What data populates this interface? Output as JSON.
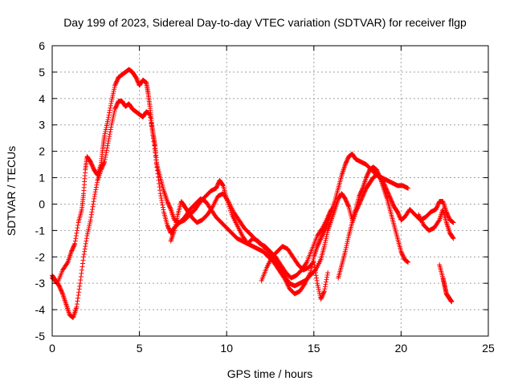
{
  "chart_data": {
    "type": "scatter",
    "title": "Day 199 of 2023, Sidereal Day-to-day VTEC variation (SDTVAR) for receiver flgp",
    "xlabel": "GPS time / hours",
    "ylabel": "SDTVAR / TECUs",
    "xlim": [
      0,
      25
    ],
    "ylim": [
      -5,
      6
    ],
    "xticks": [
      0,
      5,
      10,
      15,
      20,
      25
    ],
    "yticks": [
      -5,
      -4,
      -3,
      -2,
      -1,
      0,
      1,
      2,
      3,
      4,
      5,
      6
    ],
    "grid": true,
    "marker": "+",
    "series": [
      {
        "name": "SDTVAR",
        "color": "#ff0000",
        "segments": [
          [
            [
              0.0,
              -2.8
            ],
            [
              0.3,
              -3.0
            ],
            [
              0.6,
              -2.5
            ],
            [
              0.9,
              -2.2
            ],
            [
              1.1,
              -1.8
            ],
            [
              1.3,
              -1.5
            ],
            [
              1.5,
              -0.7
            ],
            [
              1.7,
              -0.2
            ],
            [
              1.8,
              0.4
            ],
            [
              1.9,
              1.3
            ],
            [
              2.0,
              1.8
            ],
            [
              2.2,
              1.6
            ],
            [
              2.4,
              1.3
            ],
            [
              2.6,
              1.1
            ],
            [
              2.8,
              1.5
            ],
            [
              2.9,
              2.1
            ],
            [
              3.0,
              2.6
            ],
            [
              3.2,
              3.2
            ],
            [
              3.4,
              3.9
            ],
            [
              3.6,
              4.5
            ],
            [
              3.8,
              4.8
            ],
            [
              4.0,
              4.9
            ],
            [
              4.2,
              5.0
            ],
            [
              4.4,
              5.1
            ],
            [
              4.6,
              5.0
            ],
            [
              4.8,
              4.8
            ],
            [
              5.0,
              4.5
            ],
            [
              5.2,
              4.7
            ],
            [
              5.4,
              4.6
            ],
            [
              5.5,
              4.2
            ],
            [
              5.6,
              3.7
            ],
            [
              5.7,
              3.1
            ],
            [
              5.8,
              2.6
            ],
            [
              5.9,
              2.2
            ],
            [
              6.0,
              1.5
            ],
            [
              6.2,
              1.0
            ],
            [
              6.4,
              0.5
            ],
            [
              6.6,
              0.1
            ],
            [
              6.8,
              -0.2
            ],
            [
              7.0,
              -0.6
            ],
            [
              7.3,
              -0.7
            ],
            [
              7.6,
              -0.6
            ],
            [
              7.9,
              -0.4
            ],
            [
              8.2,
              -0.2
            ],
            [
              8.5,
              0.1
            ],
            [
              8.8,
              0.3
            ],
            [
              9.1,
              0.5
            ],
            [
              9.4,
              0.6
            ],
            [
              9.6,
              0.9
            ],
            [
              9.8,
              0.7
            ],
            [
              10.0,
              0.2
            ],
            [
              10.3,
              -0.4
            ],
            [
              10.6,
              -0.8
            ],
            [
              10.9,
              -1.2
            ],
            [
              11.2,
              -1.5
            ],
            [
              11.5,
              -1.6
            ],
            [
              11.8,
              -1.7
            ],
            [
              12.1,
              -1.8
            ],
            [
              12.4,
              -2.0
            ],
            [
              12.7,
              -2.2
            ],
            [
              13.0,
              -2.5
            ],
            [
              13.3,
              -2.8
            ],
            [
              13.6,
              -3.2
            ],
            [
              13.9,
              -3.4
            ],
            [
              14.2,
              -3.3
            ],
            [
              14.5,
              -3.0
            ],
            [
              14.8,
              -2.6
            ],
            [
              15.0,
              -2.0
            ],
            [
              15.2,
              -1.6
            ],
            [
              15.4,
              -1.3
            ],
            [
              15.6,
              -1.0
            ],
            [
              15.8,
              -0.7
            ],
            [
              16.0,
              -0.3
            ],
            [
              16.2,
              0.1
            ],
            [
              16.4,
              0.6
            ],
            [
              16.6,
              1.1
            ],
            [
              16.8,
              1.5
            ],
            [
              17.0,
              1.8
            ],
            [
              17.2,
              1.9
            ],
            [
              17.4,
              1.7
            ],
            [
              17.7,
              1.6
            ],
            [
              18.0,
              1.5
            ],
            [
              18.3,
              1.3
            ],
            [
              18.6,
              1.1
            ],
            [
              18.9,
              1.0
            ],
            [
              19.2,
              0.9
            ],
            [
              19.5,
              0.8
            ],
            [
              19.8,
              0.7
            ],
            [
              20.1,
              0.7
            ],
            [
              20.4,
              0.6
            ]
          ],
          [
            [
              0.0,
              -2.7
            ],
            [
              0.2,
              -2.9
            ],
            [
              0.4,
              -3.1
            ],
            [
              0.6,
              -3.4
            ],
            [
              0.8,
              -3.8
            ],
            [
              1.0,
              -4.2
            ],
            [
              1.2,
              -4.3
            ],
            [
              1.4,
              -3.9
            ],
            [
              1.6,
              -3.0
            ],
            [
              1.8,
              -2.0
            ],
            [
              2.0,
              -1.2
            ],
            [
              2.2,
              -0.6
            ],
            [
              2.4,
              0.2
            ],
            [
              2.6,
              0.9
            ],
            [
              2.8,
              1.3
            ],
            [
              3.0,
              1.6
            ],
            [
              3.2,
              2.3
            ],
            [
              3.4,
              3.0
            ],
            [
              3.6,
              3.6
            ],
            [
              3.8,
              3.9
            ],
            [
              4.0,
              3.9
            ],
            [
              4.2,
              3.7
            ],
            [
              4.4,
              3.8
            ],
            [
              4.6,
              3.6
            ],
            [
              4.8,
              3.5
            ],
            [
              5.0,
              3.4
            ],
            [
              5.2,
              3.3
            ],
            [
              5.4,
              3.5
            ],
            [
              5.6,
              3.4
            ],
            [
              5.8,
              2.5
            ],
            [
              6.0,
              1.4
            ],
            [
              6.2,
              0.4
            ],
            [
              6.4,
              -0.3
            ],
            [
              6.6,
              -0.8
            ],
            [
              6.8,
              -1.1
            ],
            [
              7.0,
              -0.9
            ],
            [
              7.3,
              -0.7
            ],
            [
              7.6,
              -0.5
            ],
            [
              7.9,
              -0.2
            ],
            [
              8.2,
              0.0
            ],
            [
              8.5,
              0.2
            ],
            [
              8.8,
              0.1
            ],
            [
              9.1,
              -0.2
            ],
            [
              9.4,
              -0.5
            ],
            [
              9.7,
              -0.7
            ],
            [
              10.0,
              -0.9
            ],
            [
              10.3,
              -1.1
            ],
            [
              10.6,
              -1.3
            ],
            [
              10.9,
              -1.4
            ],
            [
              11.2,
              -1.5
            ],
            [
              11.5,
              -1.3
            ],
            [
              11.8,
              -1.4
            ],
            [
              12.1,
              -1.6
            ],
            [
              12.4,
              -1.8
            ],
            [
              12.7,
              -2.1
            ],
            [
              13.0,
              -2.4
            ],
            [
              13.3,
              -2.7
            ],
            [
              13.6,
              -3.0
            ],
            [
              13.9,
              -3.1
            ],
            [
              14.2,
              -3.0
            ],
            [
              14.5,
              -2.9
            ],
            [
              14.8,
              -2.7
            ],
            [
              15.1,
              -2.5
            ],
            [
              15.4,
              -2.1
            ],
            [
              15.6,
              -1.6
            ],
            [
              15.8,
              -1.0
            ],
            [
              16.0,
              -0.6
            ],
            [
              16.2,
              -0.2
            ],
            [
              16.4,
              0.2
            ],
            [
              16.6,
              0.4
            ],
            [
              16.8,
              0.2
            ],
            [
              17.0,
              -0.1
            ],
            [
              17.2,
              -0.6
            ],
            [
              17.4,
              -0.2
            ],
            [
              17.6,
              0.3
            ],
            [
              17.8,
              0.6
            ],
            [
              18.0,
              1.0
            ],
            [
              18.2,
              1.3
            ],
            [
              18.4,
              1.4
            ],
            [
              18.6,
              1.3
            ],
            [
              18.8,
              1.0
            ],
            [
              19.0,
              0.6
            ],
            [
              19.2,
              0.2
            ],
            [
              19.4,
              -0.3
            ],
            [
              19.6,
              -0.8
            ],
            [
              19.8,
              -1.3
            ],
            [
              20.0,
              -1.8
            ],
            [
              20.2,
              -2.1
            ],
            [
              20.4,
              -2.2
            ]
          ],
          [
            [
              6.8,
              -1.4
            ],
            [
              7.0,
              -1.0
            ],
            [
              7.2,
              -0.4
            ],
            [
              7.4,
              0.1
            ],
            [
              7.6,
              -0.1
            ],
            [
              7.8,
              -0.3
            ],
            [
              8.0,
              -0.5
            ],
            [
              8.3,
              -0.7
            ],
            [
              8.6,
              -0.6
            ],
            [
              8.9,
              -0.4
            ],
            [
              9.2,
              -0.1
            ],
            [
              9.5,
              0.3
            ],
            [
              9.8,
              0.4
            ],
            [
              10.1,
              0.1
            ],
            [
              10.4,
              -0.3
            ],
            [
              10.7,
              -0.6
            ],
            [
              11.0,
              -0.9
            ],
            [
              11.3,
              -1.1
            ],
            [
              11.6,
              -1.3
            ],
            [
              11.9,
              -1.5
            ],
            [
              12.2,
              -1.6
            ],
            [
              12.5,
              -1.8
            ],
            [
              12.8,
              -2.0
            ],
            [
              13.1,
              -2.3
            ],
            [
              13.4,
              -2.6
            ],
            [
              13.7,
              -2.8
            ],
            [
              14.0,
              -2.7
            ],
            [
              14.3,
              -2.5
            ],
            [
              14.6,
              -2.2
            ],
            [
              14.9,
              -1.7
            ],
            [
              15.2,
              -1.2
            ],
            [
              15.5,
              -0.9
            ],
            [
              15.8,
              -0.5
            ],
            [
              16.0,
              -0.2
            ]
          ],
          [
            [
              12.0,
              -2.9
            ],
            [
              12.3,
              -2.4
            ],
            [
              12.6,
              -2.0
            ],
            [
              12.9,
              -1.8
            ],
            [
              13.2,
              -1.6
            ],
            [
              13.5,
              -1.7
            ],
            [
              13.8,
              -2.0
            ],
            [
              14.1,
              -2.3
            ],
            [
              14.4,
              -2.5
            ],
            [
              14.7,
              -2.4
            ],
            [
              15.0,
              -2.2
            ],
            [
              15.2,
              -3.0
            ],
            [
              15.4,
              -3.6
            ],
            [
              15.6,
              -3.3
            ],
            [
              15.8,
              -2.6
            ]
          ],
          [
            [
              16.4,
              -2.8
            ],
            [
              16.6,
              -2.3
            ],
            [
              16.8,
              -1.8
            ],
            [
              17.0,
              -1.2
            ],
            [
              17.2,
              -0.7
            ],
            [
              17.4,
              -0.3
            ],
            [
              17.6,
              0.0
            ],
            [
              17.8,
              0.3
            ],
            [
              18.0,
              0.6
            ],
            [
              18.2,
              0.8
            ],
            [
              18.4,
              1.0
            ],
            [
              18.6,
              1.1
            ],
            [
              18.8,
              1.0
            ],
            [
              19.0,
              0.8
            ],
            [
              19.2,
              0.5
            ],
            [
              19.4,
              0.2
            ],
            [
              19.6,
              -0.1
            ],
            [
              19.8,
              -0.3
            ],
            [
              20.0,
              -0.6
            ],
            [
              20.2,
              -0.5
            ],
            [
              20.5,
              -0.2
            ],
            [
              20.8,
              -0.4
            ],
            [
              21.1,
              -0.6
            ],
            [
              21.4,
              -0.5
            ],
            [
              21.7,
              -0.3
            ],
            [
              22.0,
              -0.2
            ],
            [
              22.2,
              0.1
            ],
            [
              22.4,
              0.1
            ],
            [
              22.6,
              -0.3
            ],
            [
              22.8,
              -0.6
            ],
            [
              23.0,
              -0.7
            ]
          ],
          [
            [
              21.0,
              -0.4
            ],
            [
              21.3,
              -0.8
            ],
            [
              21.6,
              -1.0
            ],
            [
              21.9,
              -0.9
            ],
            [
              22.2,
              -0.6
            ],
            [
              22.4,
              -0.2
            ],
            [
              22.6,
              -0.7
            ],
            [
              22.8,
              -1.1
            ],
            [
              23.0,
              -1.3
            ]
          ],
          [
            [
              22.2,
              -2.3
            ],
            [
              22.4,
              -2.8
            ],
            [
              22.5,
              -3.1
            ],
            [
              22.6,
              -3.4
            ],
            [
              22.7,
              -3.5
            ],
            [
              22.8,
              -3.6
            ],
            [
              22.9,
              -3.7
            ]
          ]
        ]
      }
    ]
  }
}
